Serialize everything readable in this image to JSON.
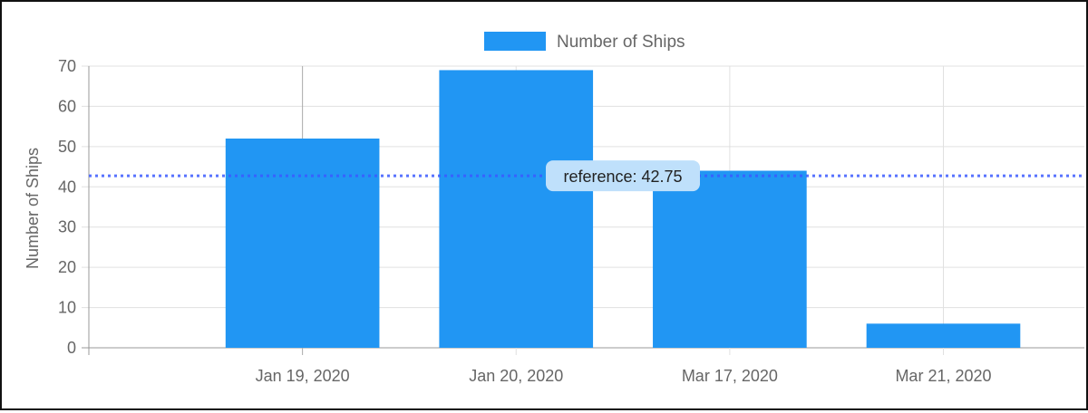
{
  "chart_data": {
    "type": "bar",
    "categories": [
      "Jan 19, 2020",
      "Jan 20, 2020",
      "Mar 17, 2020",
      "Mar 21, 2020"
    ],
    "series": [
      {
        "name": "Number of Ships",
        "values": [
          52,
          69,
          44,
          6
        ]
      }
    ],
    "title": "",
    "xlabel": "",
    "ylabel": "Number of Ships",
    "ylim": [
      0,
      70
    ],
    "yticks": [
      "0",
      "10",
      "20",
      "30",
      "40",
      "50",
      "60",
      "70"
    ],
    "grid": true,
    "legend": "top-center",
    "reference_line": {
      "value": 42.75,
      "label": "reference: 42.75"
    },
    "colors": {
      "bar": "#2196f3",
      "reference": "#3b5bff",
      "grid": "#e0e0e0",
      "axis_text": "#666666",
      "label_bg": "#bfe0fb"
    }
  }
}
